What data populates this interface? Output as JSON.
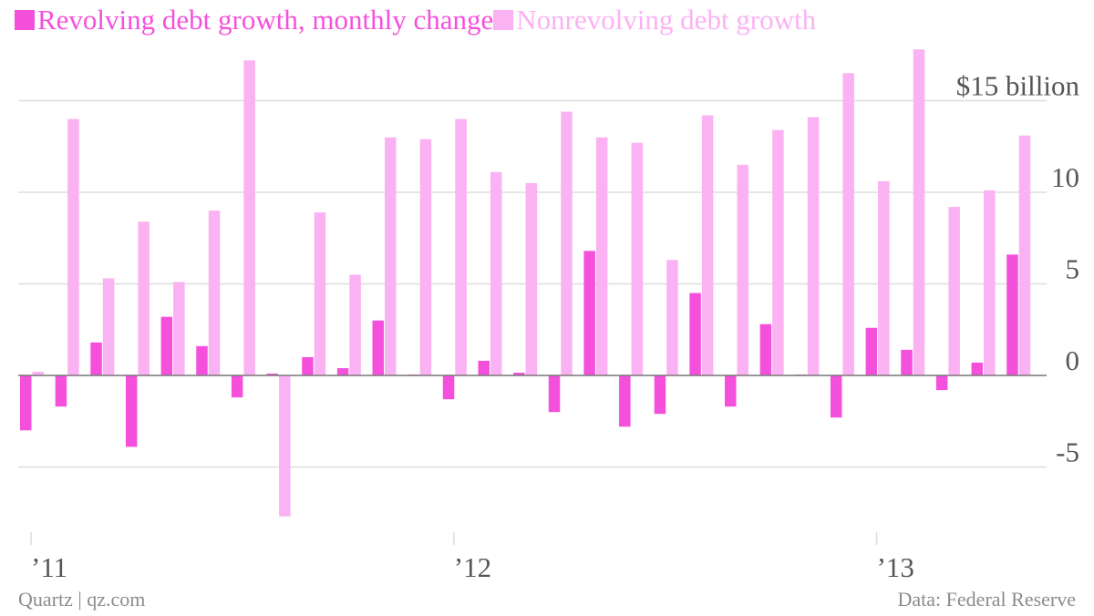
{
  "colors": {
    "revolving": "#f550dc",
    "nonrevolving": "#fbb2f3",
    "grid": "#dddddd",
    "zero": "#777777",
    "text": "#555555",
    "footer": "#8c8c8c"
  },
  "legend": {
    "revolving": "Revolving debt growth, monthly change",
    "nonrevolving": "Nonrevolving debt growth"
  },
  "footer": {
    "source_left": "Quartz | qz.com",
    "source_right": "Data: Federal Reserve"
  },
  "chart_data": {
    "type": "bar",
    "categories": [
      "2011-01",
      "2011-02",
      "2011-03",
      "2011-04",
      "2011-05",
      "2011-06",
      "2011-07",
      "2011-08",
      "2011-09",
      "2011-10",
      "2011-11",
      "2011-12",
      "2012-01",
      "2012-02",
      "2012-03",
      "2012-04",
      "2012-05",
      "2012-06",
      "2012-07",
      "2012-08",
      "2012-09",
      "2012-10",
      "2012-11",
      "2012-12",
      "2013-01",
      "2013-02",
      "2013-03",
      "2013-04",
      "2013-05"
    ],
    "series": [
      {
        "name": "Revolving debt growth, monthly change",
        "values": [
          -3.0,
          -1.7,
          1.8,
          -3.9,
          3.2,
          1.6,
          -1.2,
          0.1,
          1.0,
          0.4,
          3.0,
          0.05,
          -1.3,
          0.8,
          0.15,
          -2.0,
          6.8,
          -2.8,
          -2.1,
          4.5,
          -1.7,
          2.8,
          0.05,
          -2.3,
          2.6,
          1.4,
          -0.8,
          0.7,
          6.6
        ]
      },
      {
        "name": "Nonrevolving debt growth",
        "values": [
          0.2,
          14.0,
          5.3,
          8.4,
          5.1,
          9.0,
          17.2,
          -7.7,
          8.9,
          5.5,
          13.0,
          12.9,
          14.0,
          11.1,
          10.5,
          14.4,
          13.0,
          12.7,
          6.3,
          14.2,
          11.5,
          13.4,
          14.1,
          16.5,
          10.6,
          17.8,
          9.2,
          10.1,
          13.1
        ]
      }
    ],
    "xlabel": "",
    "ylabel": "",
    "ylim": [
      -8.5,
      18
    ],
    "yticks": [
      {
        "value": 15,
        "label": "$15 billion"
      },
      {
        "value": 10,
        "label": "10"
      },
      {
        "value": 5,
        "label": "5"
      },
      {
        "value": 0,
        "label": "0"
      },
      {
        "value": -5,
        "label": "-5"
      }
    ],
    "xticks": [
      {
        "at": "2011-01",
        "label": "’11"
      },
      {
        "at": "2012-01",
        "label": "’12"
      },
      {
        "at": "2013-01",
        "label": "’13"
      }
    ],
    "grid": true,
    "legend_position": "top-left"
  }
}
